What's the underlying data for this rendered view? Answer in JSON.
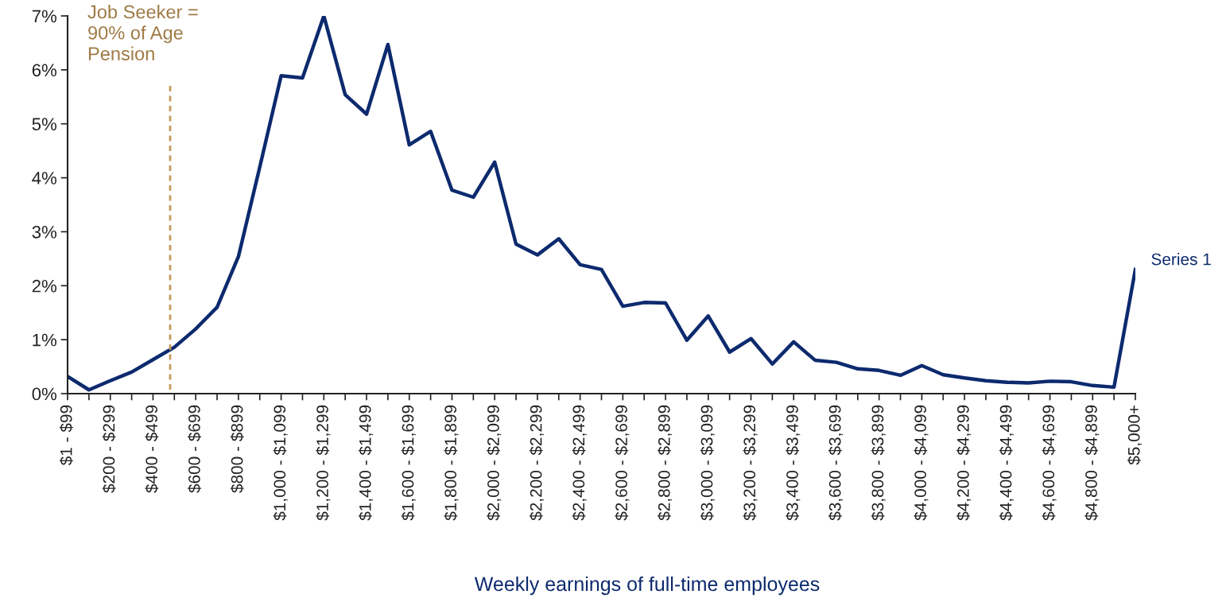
{
  "chart_data": {
    "type": "line",
    "xlabel": "Weekly earnings of full-time employees",
    "categories": [
      "$1 - $99",
      null,
      "$200 - $299",
      null,
      "$400 - $499",
      null,
      "$600 - $699",
      null,
      "$800 - $899",
      null,
      "$1,000 - $1,099",
      null,
      "$1,200 - $1,299",
      null,
      "$1,400 - $1,499",
      null,
      "$1,600 - $1,699",
      null,
      "$1,800 - $1,899",
      null,
      "$2,000 - $2,099",
      null,
      "$2,200 - $2,299",
      null,
      "$2,400 - $2,499",
      null,
      "$2,600 - $2,699",
      null,
      "$2,800 - $2,899",
      null,
      "$3,000 - $3,099",
      null,
      "$3,200 - $3,299",
      null,
      "$3,400 - $3,499",
      null,
      "$3,600 - $3,699",
      null,
      "$3,800 - $3,899",
      null,
      "$4,000 - $4,099",
      null,
      "$4,200 - $4,299",
      null,
      "$4,400 - $4,499",
      null,
      "$4,600 - $4,699",
      null,
      "$4,800 - $4,899",
      null,
      "$5,000+"
    ],
    "series": [
      {
        "name": "Series 1",
        "color": "#0d2a6e",
        "values": [
          0.32,
          0.07,
          0.24,
          0.4,
          0.63,
          0.86,
          1.2,
          1.6,
          2.54,
          4.2,
          5.89,
          5.85,
          7.0,
          5.54,
          5.18,
          6.47,
          4.61,
          4.86,
          3.77,
          3.64,
          4.29,
          2.77,
          2.57,
          2.87,
          2.39,
          2.3,
          1.62,
          1.69,
          1.68,
          0.99,
          1.44,
          0.77,
          1.02,
          0.55,
          0.96,
          0.62,
          0.58,
          0.46,
          0.43,
          0.34,
          0.52,
          0.35,
          0.29,
          0.24,
          0.21,
          0.2,
          0.23,
          0.22,
          0.15,
          0.12,
          2.3
        ]
      }
    ],
    "ylim": [
      0,
      7
    ],
    "yticks": [
      {
        "value": 0,
        "label": "0%"
      },
      {
        "value": 1,
        "label": "1%"
      },
      {
        "value": 2,
        "label": "2%"
      },
      {
        "value": 3,
        "label": "3%"
      },
      {
        "value": 4,
        "label": "4%"
      },
      {
        "value": 5,
        "label": "5%"
      },
      {
        "value": 6,
        "label": "6%"
      },
      {
        "value": 7,
        "label": "7%"
      }
    ],
    "annotations": [
      "Job Seeker =\n90% of Age\nPension"
    ],
    "grid": false,
    "legend": false,
    "marker": "none",
    "line_style": "solid"
  }
}
